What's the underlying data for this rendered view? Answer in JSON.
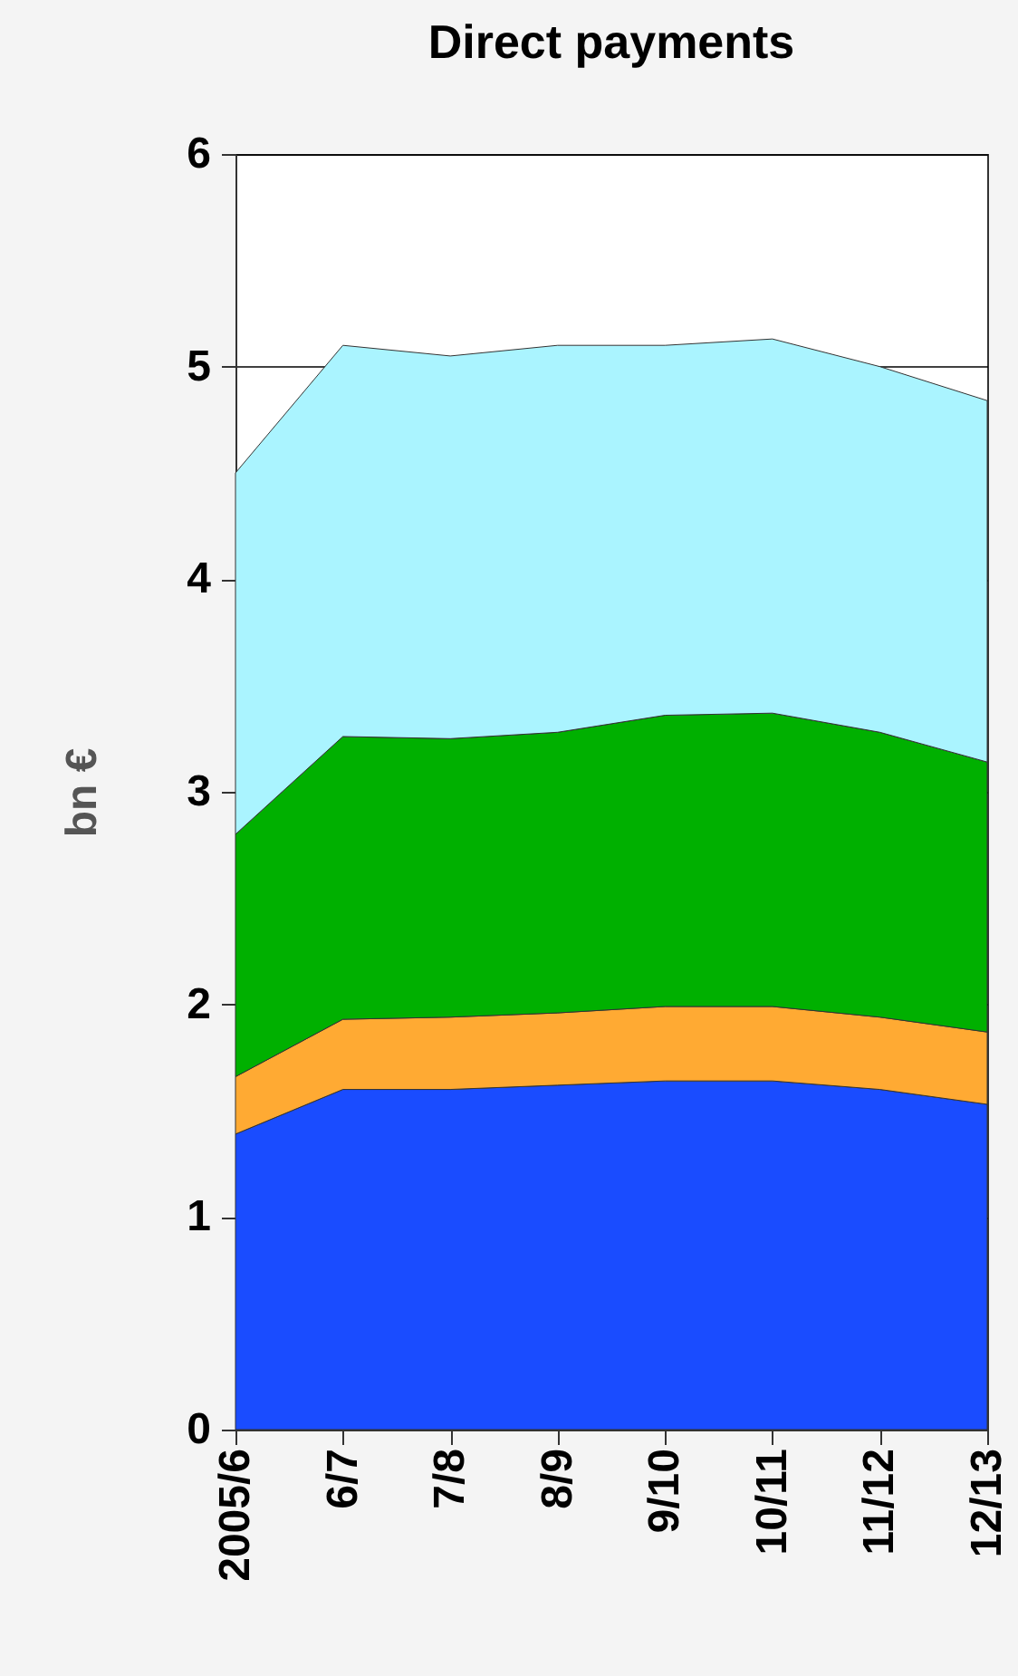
{
  "chart_data": {
    "type": "area",
    "title": "Direct payments",
    "ylabel": "bn €",
    "stacked": true,
    "categories": [
      "2005/6",
      "6/7",
      "7/8",
      "8/9",
      "9/10",
      "10/11",
      "11/12",
      "12/13"
    ],
    "series": [
      {
        "color": "#1a4cff",
        "values": [
          1.39,
          1.6,
          1.6,
          1.62,
          1.64,
          1.64,
          1.6,
          1.53
        ]
      },
      {
        "color": "#ffaa33",
        "values": [
          0.27,
          0.33,
          0.34,
          0.34,
          0.35,
          0.35,
          0.34,
          0.34
        ]
      },
      {
        "color": "#00b000",
        "values": [
          1.14,
          1.33,
          1.31,
          1.32,
          1.37,
          1.38,
          1.34,
          1.27
        ]
      },
      {
        "color": "#aaf4ff",
        "values": [
          1.7,
          1.84,
          1.8,
          1.82,
          1.74,
          1.76,
          1.72,
          1.7
        ]
      }
    ],
    "ylim": [
      0,
      6
    ],
    "yticks": [
      0,
      1,
      2,
      3,
      4,
      5,
      6
    ],
    "grid": "y",
    "legend": false
  }
}
